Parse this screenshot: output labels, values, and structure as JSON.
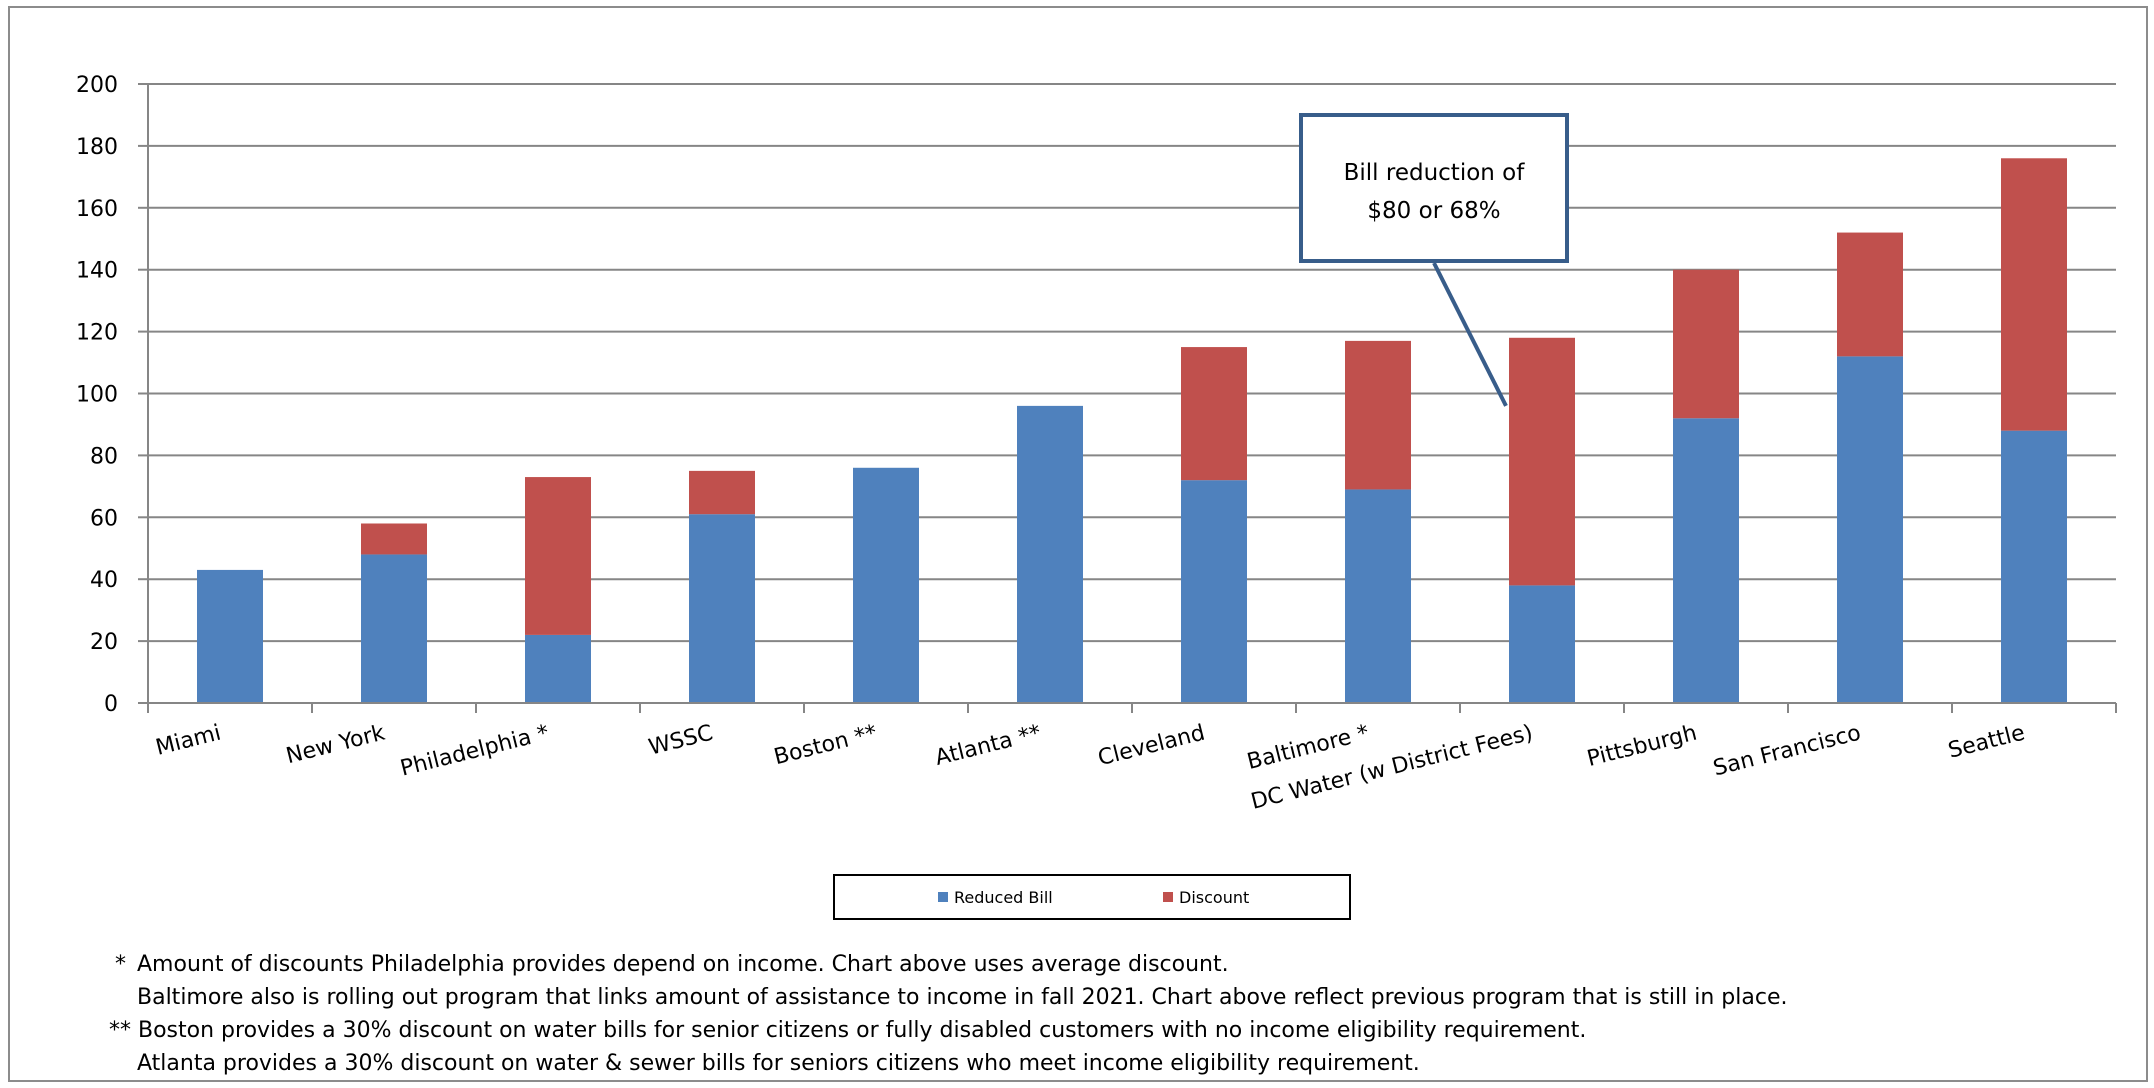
{
  "chart_data": {
    "type": "bar",
    "stacked": true,
    "categories": [
      "Miami",
      "New York",
      "Philadelphia *",
      "WSSC",
      "Boston **",
      "Atlanta **",
      "Cleveland",
      "Baltimore *",
      "DC Water (w District Fees)",
      "Pittsburgh",
      "San Francisco",
      "Seattle"
    ],
    "series": [
      {
        "name": "Reduced Bill",
        "color": "#4f81bd",
        "values": [
          43,
          48,
          22,
          61,
          76,
          96,
          72,
          69,
          38,
          92,
          112,
          88
        ]
      },
      {
        "name": "Discount",
        "color": "#c0504d",
        "values": [
          0,
          10,
          51,
          14,
          0,
          0,
          43,
          48,
          80,
          48,
          40,
          88
        ]
      }
    ],
    "ylim": [
      0,
      200
    ],
    "yticks": [
      0,
      20,
      40,
      60,
      80,
      100,
      120,
      140,
      160,
      180,
      200
    ],
    "grid": true,
    "legend_position": "bottom",
    "annotation": {
      "lines": [
        "Bill reduction of",
        "$80 or 68%"
      ],
      "target_category": "DC Water (w District Fees)",
      "border_color": "#385d8a"
    }
  },
  "footnotes": {
    "line1_mark": "*",
    "line1": "Amount of discounts Philadelphia provides depend on income. Chart above uses average discount.",
    "line2": "Baltimore also is rolling out program that links amount of assistance to income in fall 2021. Chart above reflect previous program that is still in place.",
    "line3_mark": "**",
    "line3": "Boston provides a 30% discount on water bills for senior citizens or fully disabled customers with no income eligibility requirement.",
    "line4": "Atlanta provides a 30% discount on water & sewer bills for seniors citizens who meet income eligibility requirement."
  }
}
